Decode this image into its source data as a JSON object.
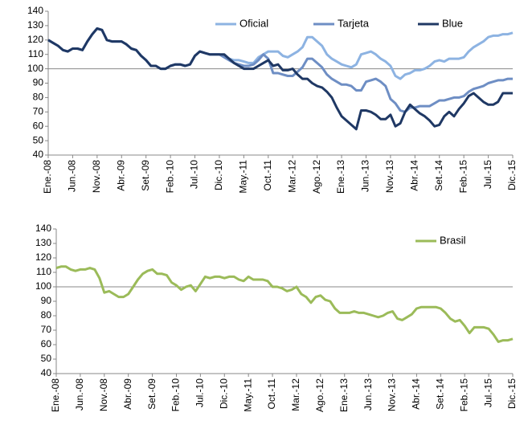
{
  "chart_data": [
    {
      "type": "line",
      "categories": [
        "Ene.-08",
        null,
        null,
        null,
        null,
        "Jun.-08",
        null,
        null,
        null,
        null,
        "Nov.-08",
        null,
        null,
        null,
        null,
        "Abr.-09",
        null,
        null,
        null,
        null,
        "Set.-09",
        null,
        null,
        null,
        null,
        "Feb.-10",
        null,
        null,
        null,
        null,
        "Jul.-10",
        null,
        null,
        null,
        null,
        "Dic.-10",
        null,
        null,
        null,
        null,
        "May.-11",
        null,
        null,
        null,
        null,
        "Oct.-11",
        null,
        null,
        null,
        null,
        "Mar.-12",
        null,
        null,
        null,
        null,
        "Ago.-12",
        null,
        null,
        null,
        null,
        "Ene.-13",
        null,
        null,
        null,
        null,
        "Jun.-13",
        null,
        null,
        null,
        null,
        "Nov.-13",
        null,
        null,
        null,
        null,
        "Abr.-14",
        null,
        null,
        null,
        null,
        "Set.-14",
        null,
        null,
        null,
        null,
        "Feb.-15",
        null,
        null,
        null,
        null,
        "Jul.-15",
        null,
        null,
        null,
        null,
        "Dic.-15"
      ],
      "ylim": [
        40,
        140
      ],
      "yticks": [
        40,
        50,
        60,
        70,
        80,
        90,
        100,
        110,
        120,
        130,
        140
      ],
      "reference_line": 100,
      "series": [
        {
          "name": "Oficial",
          "color": "#8db3e2",
          "values": [
            120,
            118,
            116,
            113,
            112,
            114,
            114,
            113,
            119,
            124,
            128,
            127,
            120,
            119,
            119,
            119,
            117,
            114,
            113,
            109,
            106,
            102,
            102,
            100,
            100,
            102,
            103,
            103,
            102,
            103,
            109,
            112,
            111,
            110,
            110,
            110,
            109,
            107,
            106,
            106,
            105,
            104,
            104,
            108,
            110,
            112,
            112,
            112,
            109,
            108,
            110,
            112,
            115,
            122,
            122,
            119,
            116,
            110,
            107,
            105,
            103,
            102,
            101,
            103,
            110,
            111,
            112,
            110,
            107,
            105,
            102,
            95,
            93,
            96,
            97,
            99,
            99,
            100,
            102,
            105,
            106,
            105,
            107,
            107,
            107,
            108,
            112,
            115,
            117,
            119,
            122,
            123,
            123,
            124,
            124,
            125
          ]
        },
        {
          "name": "Tarjeta",
          "color": "#6e8ec4",
          "values": [
            120,
            118,
            116,
            113,
            112,
            114,
            114,
            113,
            119,
            124,
            128,
            127,
            120,
            119,
            119,
            119,
            117,
            114,
            113,
            109,
            106,
            102,
            102,
            100,
            100,
            102,
            103,
            103,
            102,
            103,
            109,
            112,
            111,
            110,
            110,
            110,
            108,
            106,
            104,
            103,
            102,
            102,
            103,
            106,
            110,
            107,
            97,
            97,
            96,
            95,
            95,
            98,
            101,
            107,
            107,
            104,
            101,
            96,
            93,
            91,
            89,
            89,
            88,
            85,
            85,
            91,
            92,
            93,
            91,
            88,
            79,
            76,
            71,
            70,
            73,
            73,
            74,
            74,
            74,
            76,
            78,
            78,
            79,
            80,
            80,
            81,
            84,
            86,
            87,
            88,
            90,
            91,
            92,
            92,
            93,
            93
          ]
        },
        {
          "name": "Blue",
          "color": "#1f3864",
          "values": [
            120,
            118,
            116,
            113,
            112,
            114,
            114,
            113,
            119,
            124,
            128,
            127,
            120,
            119,
            119,
            119,
            117,
            114,
            113,
            109,
            106,
            102,
            102,
            100,
            100,
            102,
            103,
            103,
            102,
            103,
            109,
            112,
            111,
            110,
            110,
            110,
            110,
            107,
            104,
            102,
            100,
            100,
            100,
            102,
            104,
            106,
            102,
            103,
            99,
            99,
            100,
            96,
            93,
            93,
            90,
            88,
            87,
            84,
            80,
            73,
            67,
            64,
            61,
            58,
            71,
            71,
            70,
            68,
            65,
            65,
            68,
            60,
            62,
            70,
            75,
            72,
            69,
            67,
            64,
            60,
            61,
            67,
            70,
            67,
            72,
            76,
            81,
            83,
            80,
            77,
            75,
            75,
            77,
            83,
            83,
            83
          ]
        }
      ]
    },
    {
      "type": "line",
      "categories": [
        "Ene.-08",
        null,
        null,
        null,
        null,
        "Jun.-08",
        null,
        null,
        null,
        null,
        "Nov.-08",
        null,
        null,
        null,
        null,
        "Abr.-09",
        null,
        null,
        null,
        null,
        "Set.-09",
        null,
        null,
        null,
        null,
        "Feb.-10",
        null,
        null,
        null,
        null,
        "Jul.-10",
        null,
        null,
        null,
        null,
        "Dic.-10",
        null,
        null,
        null,
        null,
        "May.-11",
        null,
        null,
        null,
        null,
        "Oct.-11",
        null,
        null,
        null,
        null,
        "Mar.-12",
        null,
        null,
        null,
        null,
        "Ago.-12",
        null,
        null,
        null,
        null,
        "Ene.-13",
        null,
        null,
        null,
        null,
        "Jun.-13",
        null,
        null,
        null,
        null,
        "Nov.-13",
        null,
        null,
        null,
        null,
        "Abr.-14",
        null,
        null,
        null,
        null,
        "Set.-14",
        null,
        null,
        null,
        null,
        "Feb.-15",
        null,
        null,
        null,
        null,
        "Jul.-15",
        null,
        null,
        null,
        null,
        "Dic.-15"
      ],
      "ylim": [
        40,
        140
      ],
      "yticks": [
        40,
        50,
        60,
        70,
        80,
        90,
        100,
        110,
        120,
        130,
        140
      ],
      "reference_line": 100,
      "series": [
        {
          "name": "Brasil",
          "color": "#9bbb59",
          "values": [
            113,
            114,
            114,
            112,
            111,
            112,
            112,
            113,
            112,
            106,
            96,
            97,
            95,
            93,
            93,
            95,
            100,
            105,
            109,
            111,
            112,
            109,
            109,
            108,
            103,
            101,
            98,
            100,
            101,
            97,
            102,
            107,
            106,
            107,
            107,
            106,
            107,
            107,
            105,
            104,
            107,
            105,
            105,
            105,
            104,
            100,
            100,
            99,
            97,
            98,
            100,
            95,
            93,
            89,
            93,
            94,
            91,
            90,
            85,
            82,
            82,
            82,
            83,
            82,
            82,
            81,
            80,
            79,
            80,
            82,
            83,
            78,
            77,
            79,
            81,
            85,
            86,
            86,
            86,
            86,
            85,
            82,
            78,
            76,
            77,
            73,
            68,
            72,
            72,
            72,
            71,
            67,
            62,
            63,
            63,
            64
          ]
        }
      ]
    }
  ]
}
